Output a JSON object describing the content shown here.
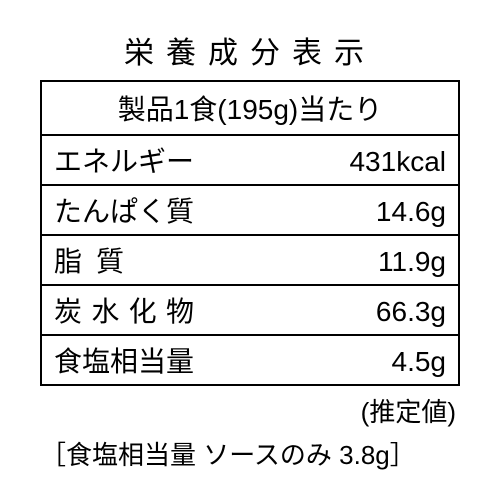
{
  "title": "栄養成分表示",
  "serving": "製品1食(195g)当たり",
  "rows": [
    {
      "label": "エネルギー",
      "value": "431kcal",
      "justifyClass": ""
    },
    {
      "label": "たんぱく質",
      "value": "14.6g",
      "justifyClass": ""
    },
    {
      "label": "脂質",
      "value": "11.9g",
      "justifyClass": "label-justified w2"
    },
    {
      "label": "炭水化物",
      "value": "66.3g",
      "justifyClass": "label-justified w4"
    },
    {
      "label": "食塩相当量",
      "value": "4.5g",
      "justifyClass": ""
    }
  ],
  "estimate": "(推定値)",
  "footnote": "［食塩相当量 ソースのみ 3.8g］"
}
